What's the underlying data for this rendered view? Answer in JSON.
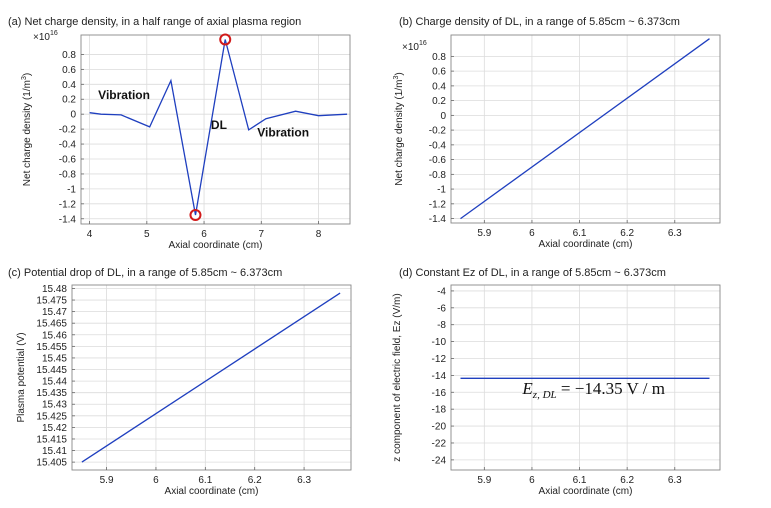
{
  "chart_data": [
    {
      "type": "line",
      "title": "(a) Net charge density, in a half range of axial plasma region",
      "xlabel": "Axial coordinate (cm)",
      "ylabel": "Net charge density (1/m",
      "ylabel_sup": "3",
      "ylabel_end": ")",
      "multiplier": "×10",
      "multiplier_exp": "16",
      "xlim": [
        3.85,
        8.55
      ],
      "ylim": [
        -1.47,
        1.06
      ],
      "xticks": [
        4,
        5,
        6,
        7,
        8
      ],
      "xtick_labels": [
        "4",
        "5",
        "6",
        "7",
        "8"
      ],
      "yticks": [
        -1.4,
        -1.2,
        -1,
        -0.8,
        -0.6,
        -0.4,
        -0.2,
        0,
        0.2,
        0.4,
        0.6,
        0.8
      ],
      "ytick_labels": [
        "-1.4",
        "-1.2",
        "-1",
        "-0.8",
        "-0.6",
        "-0.4",
        "-0.2",
        "0",
        "0.2",
        "0.4",
        "0.6",
        "0.8"
      ],
      "series": [
        {
          "name": "net charge density",
          "x": [
            4.0,
            4.2,
            4.55,
            5.05,
            5.42,
            5.85,
            6.37,
            6.78,
            7.08,
            7.6,
            8.0,
            8.5
          ],
          "y": [
            0.02,
            0.0,
            -0.01,
            -0.17,
            0.45,
            -1.35,
            1.0,
            -0.21,
            -0.06,
            0.04,
            -0.02,
            0.0
          ]
        }
      ],
      "markers": [
        {
          "name": "dl-start-marker",
          "x": 5.85,
          "y": -1.35
        },
        {
          "name": "dl-end-marker",
          "x": 6.37,
          "y": 1.0
        }
      ],
      "annotations": [
        {
          "name": "vibration-left-label",
          "text": "Vibration",
          "x": 4.15,
          "y": 0.2
        },
        {
          "name": "dl-label",
          "text": "DL",
          "x": 6.12,
          "y": -0.2
        },
        {
          "name": "vibration-right-label",
          "text": "Vibration",
          "x": 6.93,
          "y": -0.3
        }
      ]
    },
    {
      "type": "line",
      "title": "(b) Charge density of DL, in a range of 5.85cm ~ 6.373cm",
      "xlabel": "Axial coordinate (cm)",
      "ylabel": "Net charge density (1/m",
      "ylabel_sup": "3",
      "ylabel_end": ")",
      "multiplier": "×10",
      "multiplier_exp": "16",
      "xlim": [
        5.83,
        6.395
      ],
      "ylim": [
        -1.46,
        1.09
      ],
      "xticks": [
        5.9,
        6,
        6.1,
        6.2,
        6.3
      ],
      "xtick_labels": [
        "5.9",
        "6",
        "6.1",
        "6.2",
        "6.3"
      ],
      "yticks": [
        -1.4,
        -1.2,
        -1,
        -0.8,
        -0.6,
        -0.4,
        -0.2,
        0,
        0.2,
        0.4,
        0.6,
        0.8
      ],
      "ytick_labels": [
        "-1.4",
        "-1.2",
        "-1",
        "-0.8",
        "-0.6",
        "-0.4",
        "-0.2",
        "0",
        "0.2",
        "0.4",
        "0.6",
        "0.8"
      ],
      "series": [
        {
          "name": "charge density",
          "x": [
            5.85,
            6.373
          ],
          "y": [
            -1.4,
            1.04
          ]
        }
      ]
    },
    {
      "type": "line",
      "title": "(c) Potential drop of DL, in a range of 5.85cm ~ 6.373cm",
      "xlabel": "Axial coordinate (cm)",
      "ylabel": "Plasma potential (V)",
      "xlim": [
        5.83,
        6.395
      ],
      "ylim": [
        15.4016,
        15.4815
      ],
      "xticks": [
        5.9,
        6,
        6.1,
        6.2,
        6.3
      ],
      "xtick_labels": [
        "5.9",
        "6",
        "6.1",
        "6.2",
        "6.3"
      ],
      "yticks": [
        15.405,
        15.41,
        15.415,
        15.42,
        15.425,
        15.43,
        15.435,
        15.44,
        15.445,
        15.45,
        15.455,
        15.46,
        15.465,
        15.47,
        15.475,
        15.48
      ],
      "ytick_labels": [
        "15.405",
        "15.41",
        "15.415",
        "15.42",
        "15.425",
        "15.43",
        "15.435",
        "15.44",
        "15.445",
        "15.45",
        "15.455",
        "15.46",
        "15.465",
        "15.47",
        "15.475",
        "15.48"
      ],
      "series": [
        {
          "name": "plasma potential",
          "x": [
            5.85,
            6.373
          ],
          "y": [
            15.405,
            15.478
          ]
        }
      ]
    },
    {
      "type": "line",
      "title": "(d) Constant Ez of DL, in a range of 5.85cm ~ 6.373cm",
      "xlabel": "Axial coordinate (cm)",
      "ylabel": "z component of electric field, Ez (V/m)",
      "xlim": [
        5.83,
        6.395
      ],
      "ylim": [
        -25.2,
        -3.3
      ],
      "xticks": [
        5.9,
        6,
        6.1,
        6.2,
        6.3
      ],
      "xtick_labels": [
        "5.9",
        "6",
        "6.1",
        "6.2",
        "6.3"
      ],
      "yticks": [
        -24,
        -22,
        -20,
        -18,
        -16,
        -14,
        -12,
        -10,
        -8,
        -6,
        -4
      ],
      "ytick_labels": [
        "-24",
        "-22",
        "-20",
        "-18",
        "-16",
        "-14",
        "-12",
        "-10",
        "-8",
        "-6",
        "-4"
      ],
      "series": [
        {
          "name": "Ez",
          "x": [
            5.85,
            6.373
          ],
          "y": [
            -14.35,
            -14.35
          ]
        }
      ],
      "equation": {
        "symbol": "E",
        "subscript": "z, DL",
        "rest": " = −14.35 V / m",
        "x": 5.98,
        "y": -16.2
      }
    }
  ]
}
